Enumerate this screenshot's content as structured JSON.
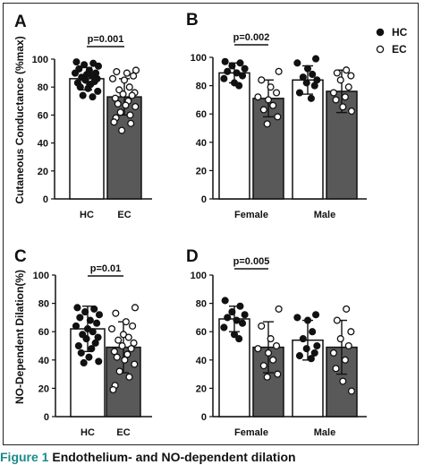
{
  "caption": {
    "fig_num": "Figure 1",
    "text": " Endothelium- and NO-dependent dilation"
  },
  "legend": [
    {
      "label": "HC",
      "marker": "filled"
    },
    {
      "label": "EC",
      "marker": "open"
    }
  ],
  "colors": {
    "HC": "#ffffff",
    "EC": "#595959",
    "stroke": "#111111",
    "caption_accent": "#1b8a8a"
  },
  "chart_data": [
    {
      "panel": "A",
      "type": "bar",
      "ylabel": "Cutaneous Conductance (%max)",
      "ylim": [
        0,
        100
      ],
      "yticks": [
        0,
        20,
        40,
        60,
        80,
        100
      ],
      "groups": [
        "HC",
        "EC"
      ],
      "series": [
        {
          "name": "HC",
          "value": 86,
          "error": 8,
          "points": [
            98,
            97,
            96,
            95,
            93,
            92,
            90,
            90,
            89,
            88,
            87,
            86,
            85,
            84,
            83,
            82,
            80,
            79,
            77,
            74,
            73
          ]
        },
        {
          "name": "EC",
          "value": 73,
          "error": 13,
          "points": [
            92,
            91,
            90,
            88,
            86,
            85,
            80,
            78,
            76,
            75,
            74,
            72,
            70,
            68,
            67,
            66,
            62,
            60,
            58,
            55,
            54,
            49
          ]
        }
      ],
      "significance": [
        {
          "label": "p=0.001",
          "from": 0,
          "to": 1
        }
      ]
    },
    {
      "panel": "B",
      "type": "bar",
      "ylabel": "",
      "ylim": [
        0,
        100
      ],
      "yticks": [
        0,
        20,
        40,
        60,
        80,
        100
      ],
      "groups": [
        "Female",
        "Male"
      ],
      "series": [
        {
          "name": "HC",
          "values": [
            89,
            84
          ],
          "errors": [
            7,
            10
          ],
          "points": [
            [
              97,
              96,
              94,
              92,
              90,
              89,
              87,
              85,
              82,
              80
            ],
            [
              99,
              96,
              92,
              88,
              86,
              84,
              82,
              80,
              75,
              71
            ]
          ]
        },
        {
          "name": "EC",
          "values": [
            71,
            76
          ],
          "errors": [
            13,
            15
          ],
          "points": [
            [
              90,
              84,
              79,
              75,
              72,
              70,
              66,
              63,
              58,
              53
            ],
            [
              91,
              89,
              87,
              84,
              79,
              75,
              72,
              70,
              65,
              62
            ]
          ]
        }
      ],
      "significance": [
        {
          "label": "p=0.002",
          "group": 0
        }
      ]
    },
    {
      "panel": "C",
      "type": "bar",
      "ylabel": "NO-Dependent Dilation(%)",
      "ylim": [
        0,
        100
      ],
      "yticks": [
        0,
        20,
        40,
        60,
        80,
        100
      ],
      "groups": [
        "HC",
        "EC"
      ],
      "series": [
        {
          "name": "HC",
          "value": 62,
          "error": 16,
          "points": [
            77,
            76,
            74,
            72,
            70,
            68,
            66,
            64,
            62,
            60,
            58,
            56,
            55,
            52,
            50,
            48,
            45,
            42,
            39,
            38
          ]
        },
        {
          "name": "EC",
          "value": 49,
          "error": 18,
          "points": [
            77,
            73,
            67,
            64,
            62,
            58,
            56,
            54,
            52,
            50,
            48,
            46,
            44,
            42,
            40,
            37,
            32,
            28,
            22,
            19
          ]
        }
      ],
      "significance": [
        {
          "label": "p=0.01",
          "from": 0,
          "to": 1
        }
      ]
    },
    {
      "panel": "D",
      "type": "bar",
      "ylabel": "",
      "ylim": [
        0,
        100
      ],
      "yticks": [
        0,
        20,
        40,
        60,
        80,
        100
      ],
      "groups": [
        "Female",
        "Male"
      ],
      "series": [
        {
          "name": "HC",
          "values": [
            69,
            54
          ],
          "errors": [
            9,
            14
          ],
          "points": [
            [
              82,
              78,
              74,
              72,
              70,
              68,
              66,
              63,
              58,
              55
            ],
            [
              72,
              70,
              68,
              60,
              55,
              50,
              48,
              45,
              43,
              41
            ]
          ]
        },
        {
          "name": "EC",
          "values": [
            49,
            49
          ],
          "errors": [
            18,
            19
          ],
          "points": [
            [
              76,
              64,
              55,
              50,
              48,
              45,
              40,
              36,
              30,
              28
            ],
            [
              76,
              68,
              60,
              55,
              50,
              45,
              40,
              34,
              25,
              18
            ]
          ]
        }
      ],
      "significance": [
        {
          "label": "p=0.005",
          "group": 0
        }
      ]
    }
  ]
}
